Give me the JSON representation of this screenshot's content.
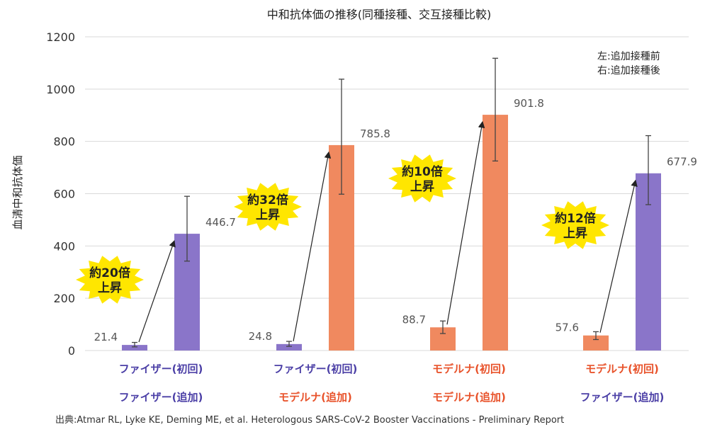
{
  "chart_data": {
    "type": "bar",
    "title": "中和抗体価の推移(同種接種、交互接種比較)",
    "ylabel": "血清中和抗体価",
    "xlabel": "",
    "ylim": [
      0,
      1200
    ],
    "yticks": [
      0,
      200,
      400,
      600,
      800,
      1000,
      1200
    ],
    "grid": true,
    "legend_note": [
      "左:追加接種前",
      "右:追加接種後"
    ],
    "groups": [
      {
        "primary": "ファイザー(初回)",
        "booster": "ファイザー(追加)",
        "primary_color": "#4b3fa6",
        "booster_color": "#4b3fa6",
        "before": 21.4,
        "after": 446.7,
        "before_err": [
          14,
          31
        ],
        "after_err": [
          342,
          590
        ],
        "before_label": "21.4",
        "after_label": "446.7",
        "fold_line1": "約20倍",
        "fold_line2": "上昇",
        "before_bar_color": "#8a75c9",
        "after_bar_color": "#8a75c9"
      },
      {
        "primary": "ファイザー(初回)",
        "booster": "モデルナ(追加)",
        "primary_color": "#4b3fa6",
        "booster_color": "#e8522a",
        "before": 24.8,
        "after": 785.8,
        "before_err": [
          16,
          35
        ],
        "after_err": [
          598,
          1038
        ],
        "before_label": "24.8",
        "after_label": "785.8",
        "fold_line1": "約32倍",
        "fold_line2": "上昇",
        "before_bar_color": "#8a75c9",
        "after_bar_color": "#f0895f"
      },
      {
        "primary": "モデルナ(初回)",
        "booster": "モデルナ(追加)",
        "primary_color": "#e8522a",
        "booster_color": "#e8522a",
        "before": 88.7,
        "after": 901.8,
        "before_err": [
          65,
          113
        ],
        "after_err": [
          725,
          1118
        ],
        "before_label": "88.7",
        "after_label": "901.8",
        "fold_line1": "約10倍",
        "fold_line2": "上昇",
        "before_bar_color": "#f0895f",
        "after_bar_color": "#f0895f"
      },
      {
        "primary": "モデルナ(初回)",
        "booster": "ファイザー(追加)",
        "primary_color": "#e8522a",
        "booster_color": "#4b3fa6",
        "before": 57.6,
        "after": 677.9,
        "before_err": [
          42,
          72
        ],
        "after_err": [
          558,
          822
        ],
        "before_label": "57.6",
        "after_label": "677.9",
        "fold_line1": "約12倍",
        "fold_line2": "上昇",
        "before_bar_color": "#f0895f",
        "after_bar_color": "#8a75c9"
      }
    ],
    "burst_color": "#ffe600"
  },
  "source": "出典:Atmar RL, Lyke KE, Deming ME, et al. Heterologous SARS-CoV-2 Booster Vaccinations - Preliminary Report"
}
